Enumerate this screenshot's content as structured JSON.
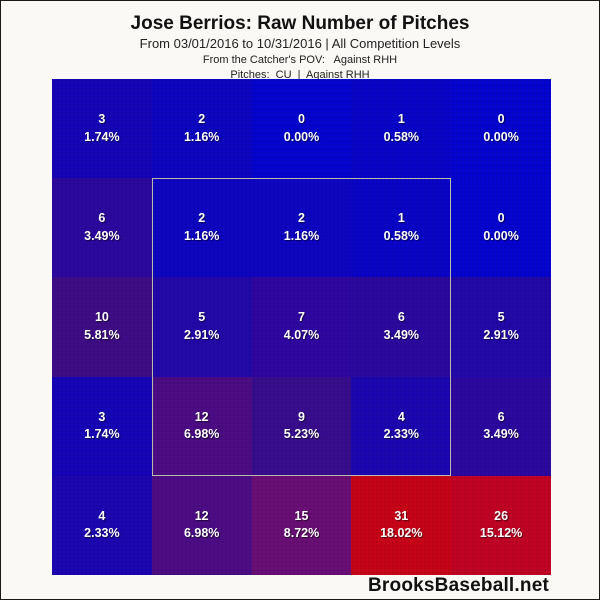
{
  "header": {
    "title": "Jose Berrios: Raw Number of Pitches",
    "date_range": "From 03/01/2016 to 10/31/2016 | All Competition Levels",
    "pov_line": "From the Catcher's POV:   Against RHH",
    "pitches_line": "Pitches:  CU  |  Against RHH"
  },
  "footer": {
    "brand": "BrooksBaseball.net"
  },
  "chart_data": {
    "type": "heatmap",
    "title": "Jose Berrios: Raw Number of Pitches",
    "subtitle": "From 03/01/2016 to 10/31/2016 | All Competition Levels",
    "view_label": "From the Catcher's POV: Against RHH",
    "pitch_label": "Pitches: CU | Against RHH",
    "grid_size": [
      5,
      5
    ],
    "value_unit": "pitch count and percentage of total",
    "strike_zone_overlay": {
      "row_start": 2,
      "row_end": 4,
      "col_start": 2,
      "col_end": 4,
      "border_color": "#b9b9ae"
    },
    "color_scale": {
      "low": "#0404ce",
      "mid": "#690e74",
      "high": "#c70318"
    },
    "cells": [
      [
        {
          "count": "3",
          "pct": "1.74%",
          "color": "#1505b6"
        },
        {
          "count": "2",
          "pct": "1.16%",
          "color": "#0d05c0"
        },
        {
          "count": "0",
          "pct": "0.00%",
          "color": "#0404ce"
        },
        {
          "count": "1",
          "pct": "0.58%",
          "color": "#0804c8"
        },
        {
          "count": "0",
          "pct": "0.00%",
          "color": "#0404ce"
        }
      ],
      [
        {
          "count": "6",
          "pct": "3.49%",
          "color": "#2b089e"
        },
        {
          "count": "2",
          "pct": "1.16%",
          "color": "#0d05c0"
        },
        {
          "count": "2",
          "pct": "1.16%",
          "color": "#0d05c0"
        },
        {
          "count": "1",
          "pct": "0.58%",
          "color": "#0904c6"
        },
        {
          "count": "0",
          "pct": "0.00%",
          "color": "#0404ce"
        }
      ],
      [
        {
          "count": "10",
          "pct": "5.81%",
          "color": "#3e0c84"
        },
        {
          "count": "5",
          "pct": "2.91%",
          "color": "#2308a8"
        },
        {
          "count": "7",
          "pct": "4.07%",
          "color": "#2f07a0"
        },
        {
          "count": "6",
          "pct": "3.49%",
          "color": "#2b089e"
        },
        {
          "count": "5",
          "pct": "2.91%",
          "color": "#2308a8"
        }
      ],
      [
        {
          "count": "3",
          "pct": "1.74%",
          "color": "#1505b6"
        },
        {
          "count": "12",
          "pct": "6.98%",
          "color": "#4b0c84"
        },
        {
          "count": "9",
          "pct": "5.23%",
          "color": "#380d8d"
        },
        {
          "count": "4",
          "pct": "2.33%",
          "color": "#1c06b0"
        },
        {
          "count": "6",
          "pct": "3.49%",
          "color": "#2b089e"
        }
      ],
      [
        {
          "count": "4",
          "pct": "2.33%",
          "color": "#1c06b0"
        },
        {
          "count": "12",
          "pct": "6.98%",
          "color": "#4b0c84"
        },
        {
          "count": "15",
          "pct": "8.72%",
          "color": "#690e74"
        },
        {
          "count": "31",
          "pct": "18.02%",
          "color": "#c70318"
        },
        {
          "count": "26",
          "pct": "15.12%",
          "color": "#c00224"
        }
      ]
    ]
  }
}
